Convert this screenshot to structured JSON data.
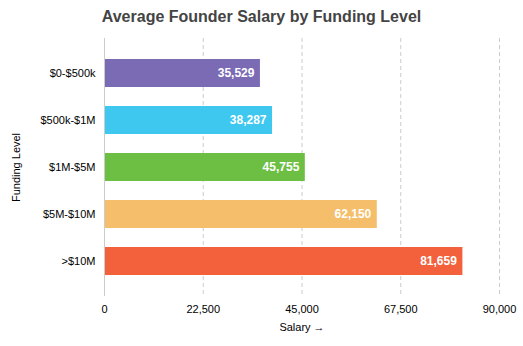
{
  "chart_data": {
    "type": "bar",
    "orientation": "horizontal",
    "title": "Average Founder Salary by Funding Level",
    "xlabel": "Salary",
    "ylabel": "Funding Level",
    "categories": [
      ">$10M",
      "$5M-$10M",
      "$1M-$5M",
      "$500k-$1M",
      "$0-$500k"
    ],
    "values": [
      81659,
      62150,
      45755,
      38287,
      35529
    ],
    "value_labels": [
      "81,659",
      "62,150",
      "45,755",
      "38,287",
      "35,529"
    ],
    "colors": [
      "#F2613C",
      "#F5BE6A",
      "#6DBF44",
      "#3EC8F0",
      "#7B6BB5"
    ],
    "data_labels": true,
    "xlim": [
      0,
      90000
    ],
    "xticks": [
      0,
      {
        "value": 22500,
        "label": "22,500"
      },
      {
        "value": 45000,
        "label": "45,000"
      },
      {
        "value": 67500,
        "label": "67,500"
      },
      {
        "value": 90000,
        "label": "90,000"
      }
    ],
    "grid": true
  }
}
